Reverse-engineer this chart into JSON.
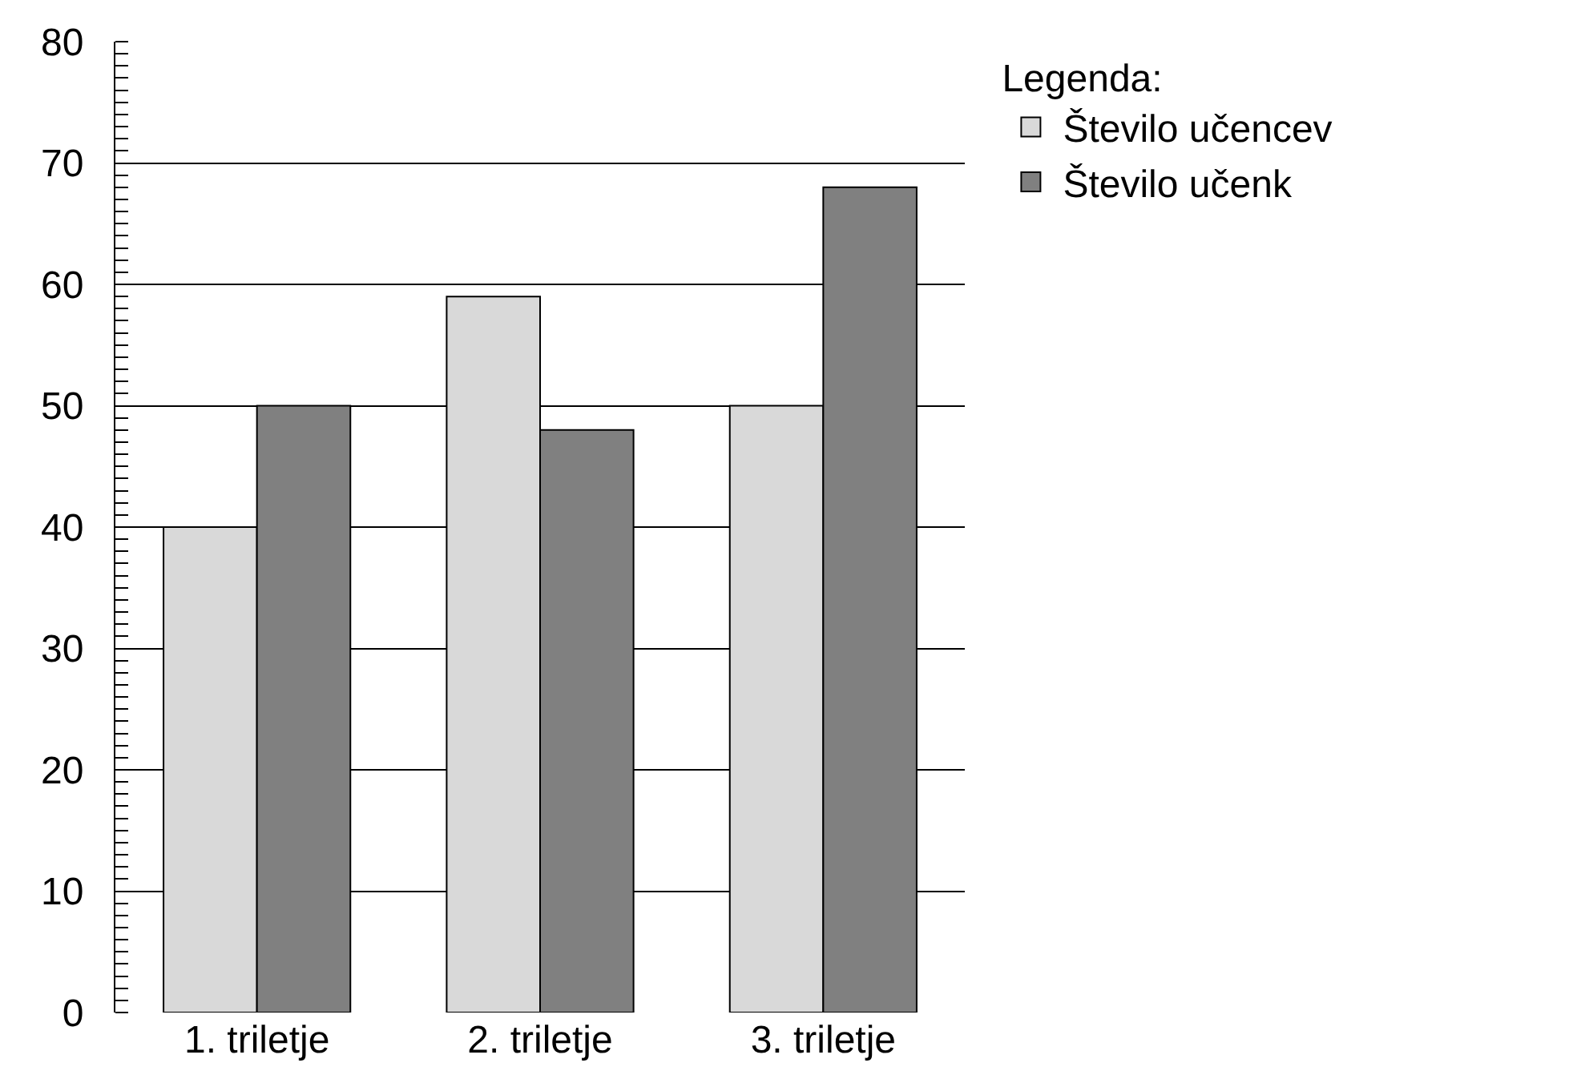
{
  "chart_data": {
    "type": "bar",
    "categories": [
      "1. triletje",
      "2. triletje",
      "3. triletje"
    ],
    "series": [
      {
        "name": "Število učencev",
        "color": "#d9d9d9",
        "values": [
          40,
          59,
          50
        ]
      },
      {
        "name": "Število učenk",
        "color": "#808080",
        "values": [
          50,
          48,
          68
        ]
      }
    ],
    "ylim": [
      0,
      80
    ],
    "yticks": [
      0,
      10,
      20,
      30,
      40,
      50,
      60,
      70,
      80
    ],
    "grid": "y",
    "legend": "top right",
    "legend_title": "Legenda:"
  }
}
